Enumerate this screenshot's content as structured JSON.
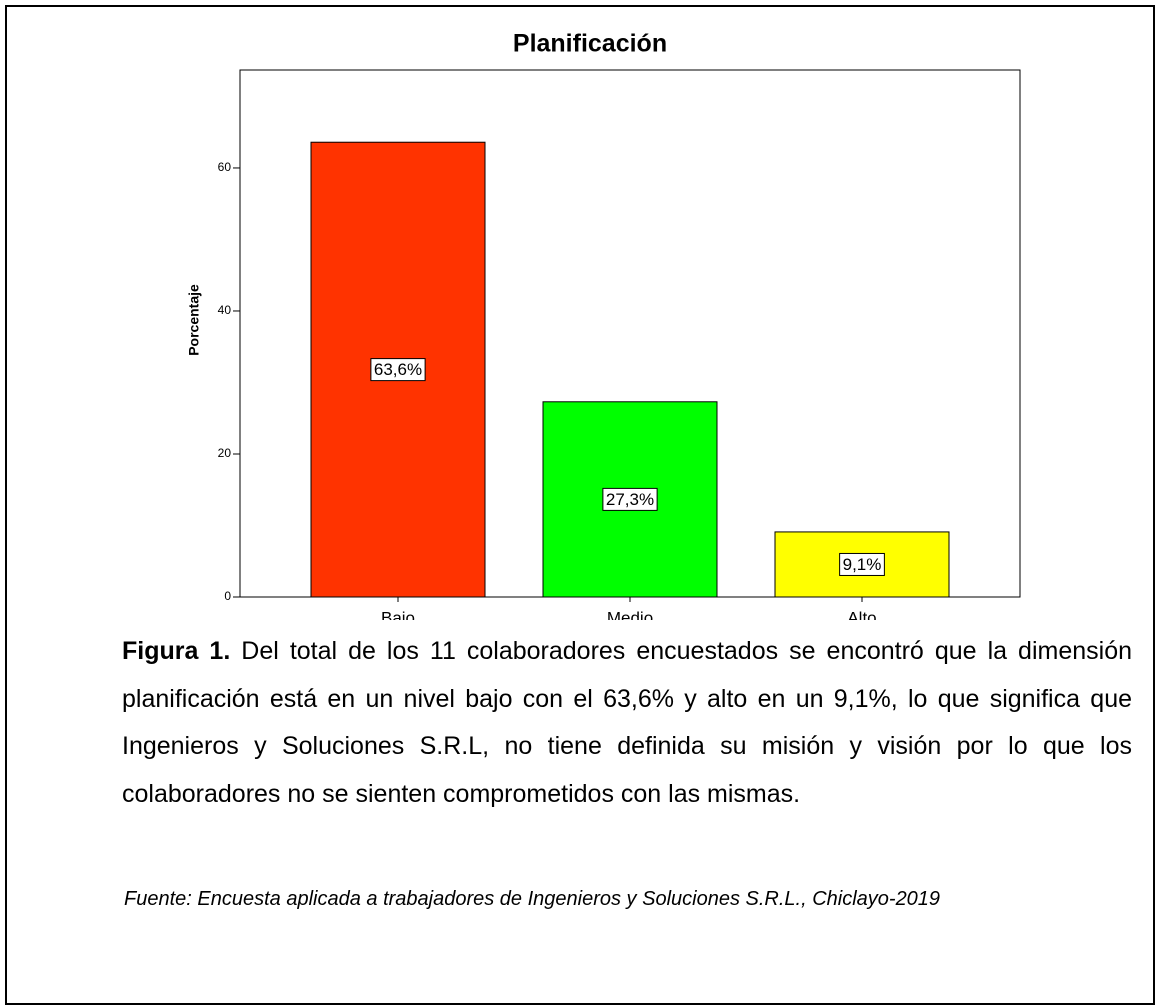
{
  "chart_data": {
    "type": "bar",
    "title": "Planificación",
    "ylabel": "Porcentaje",
    "categories": [
      "Bajo",
      "Medio",
      "Alto"
    ],
    "values": [
      63.6,
      27.3,
      9.1
    ],
    "value_labels": [
      "63,6%",
      "27,3%",
      "9,1%"
    ],
    "colors": [
      "#ff3300",
      "#00ff00",
      "#ffff00"
    ],
    "ylim": [
      0,
      73.7
    ],
    "yticks": [
      0,
      20,
      40,
      60
    ],
    "grid": false
  },
  "caption": {
    "label": "Figura 1.",
    "text": "Del total de los 11 colaboradores encuestados se encontró que la dimensión planificación está en un nivel bajo con el 63,6% y alto en un 9,1%, lo que significa que Ingenieros y Soluciones S.R.L, no tiene definida su misión y visión por lo que los colaboradores no se sienten comprometidos con las mismas."
  },
  "source": "Fuente: Encuesta aplicada a trabajadores de Ingenieros y Soluciones S.R.L., Chiclayo-2019"
}
